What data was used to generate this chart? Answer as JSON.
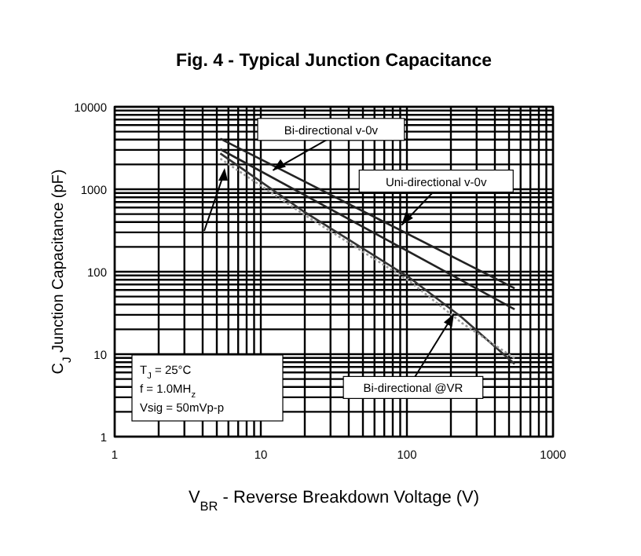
{
  "chart_data": {
    "type": "line",
    "title": "Fig. 4 - Typical Junction Capacitance",
    "xlabel": "V$_{BR}$ - Reverse Breakdown Voltage (V)",
    "ylabel": "C$_{J}$ Junction  Capacitance   (pF)",
    "log": "xy",
    "grid": true,
    "xlim": [
      1,
      1000
    ],
    "ylim": [
      1,
      10000
    ],
    "xticks": [
      1,
      10,
      100,
      1000
    ],
    "yticks": [
      1,
      10,
      100,
      1000,
      10000
    ],
    "series": [
      {
        "color": "#222222",
        "line_style": "solid",
        "x": [
          5.28,
          546
        ],
        "values": [
          4100,
          63
        ]
      },
      {
        "color": "#222222",
        "line_style": "solid",
        "x": [
          5.28,
          546
        ],
        "values": [
          3060,
          35
        ]
      },
      {
        "color": "#333333",
        "line_style": "solid",
        "x": [
          5.28,
          19.9,
          104,
          237,
          546
        ],
        "values": [
          2720,
          530,
          85,
          28,
          7.6
        ]
      },
      {
        "color": "#999999",
        "line_style": "dotted",
        "x": [
          5.28,
          19.9,
          104,
          237,
          546
        ],
        "values": [
          2350,
          490,
          77,
          24,
          8.9
        ]
      }
    ],
    "annotations": [
      {
        "text": "Bi-directional v-0v",
        "x": 12.1,
        "y": 1700
      },
      {
        "text": "Uni-directional v-0v",
        "x": 92,
        "y": 368
      },
      {
        "text": "Bi-directional @VR",
        "x": 210,
        "y": 31
      },
      "T$_{J}$ = 25°C",
      "f = 1.0MH$_{z}$",
      "Vsig = 50mVp-p"
    ]
  }
}
